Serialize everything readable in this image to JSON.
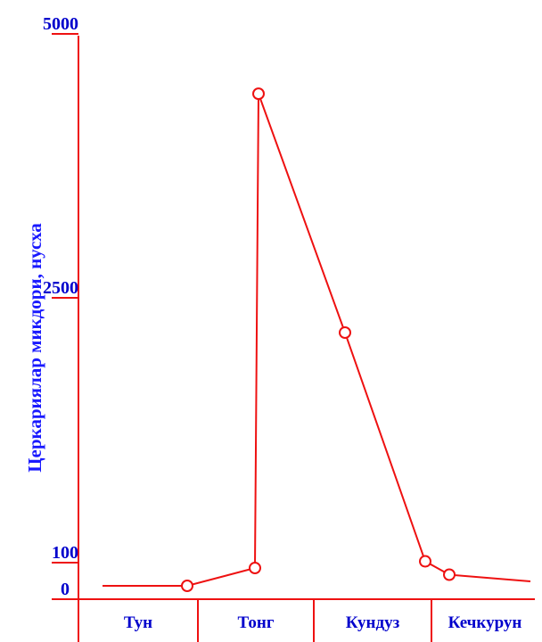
{
  "chart_data": {
    "type": "line",
    "title": "",
    "xlabel": "",
    "ylabel": "Церкариялар микдори, нусха",
    "categories": [
      "Тун",
      "Тонг",
      "Кундуз",
      "Кечкурун"
    ],
    "y_ticks": [
      {
        "value": 5000,
        "label": "5000"
      },
      {
        "value": 2500,
        "label": "2500"
      },
      {
        "value": 100,
        "label": "100"
      },
      {
        "value": 0,
        "label": "0"
      }
    ],
    "ylim": [
      0,
      5000
    ],
    "y_scale": "piecewise-linear (0–100 expanded)",
    "points": [
      {
        "x": "Тун",
        "y": 0,
        "marker": false
      },
      {
        "x": "Тун",
        "y": 0,
        "marker": true
      },
      {
        "x": "Тонг",
        "y": 80,
        "marker": true
      },
      {
        "x": "Тонг",
        "y": 4450,
        "marker": true
      },
      {
        "x": "Кундуз",
        "y": 2200,
        "marker": true
      },
      {
        "x": "Кундуз",
        "y": 120,
        "marker": true
      },
      {
        "x": "Кечкурун",
        "y": 50,
        "marker": true
      },
      {
        "x": "Кечкурун",
        "y": 20,
        "marker": false
      }
    ],
    "grid": false,
    "legend": "none",
    "colors": {
      "line": "#ee1111",
      "axis": "#ee1111",
      "text": "#0000cc"
    }
  }
}
